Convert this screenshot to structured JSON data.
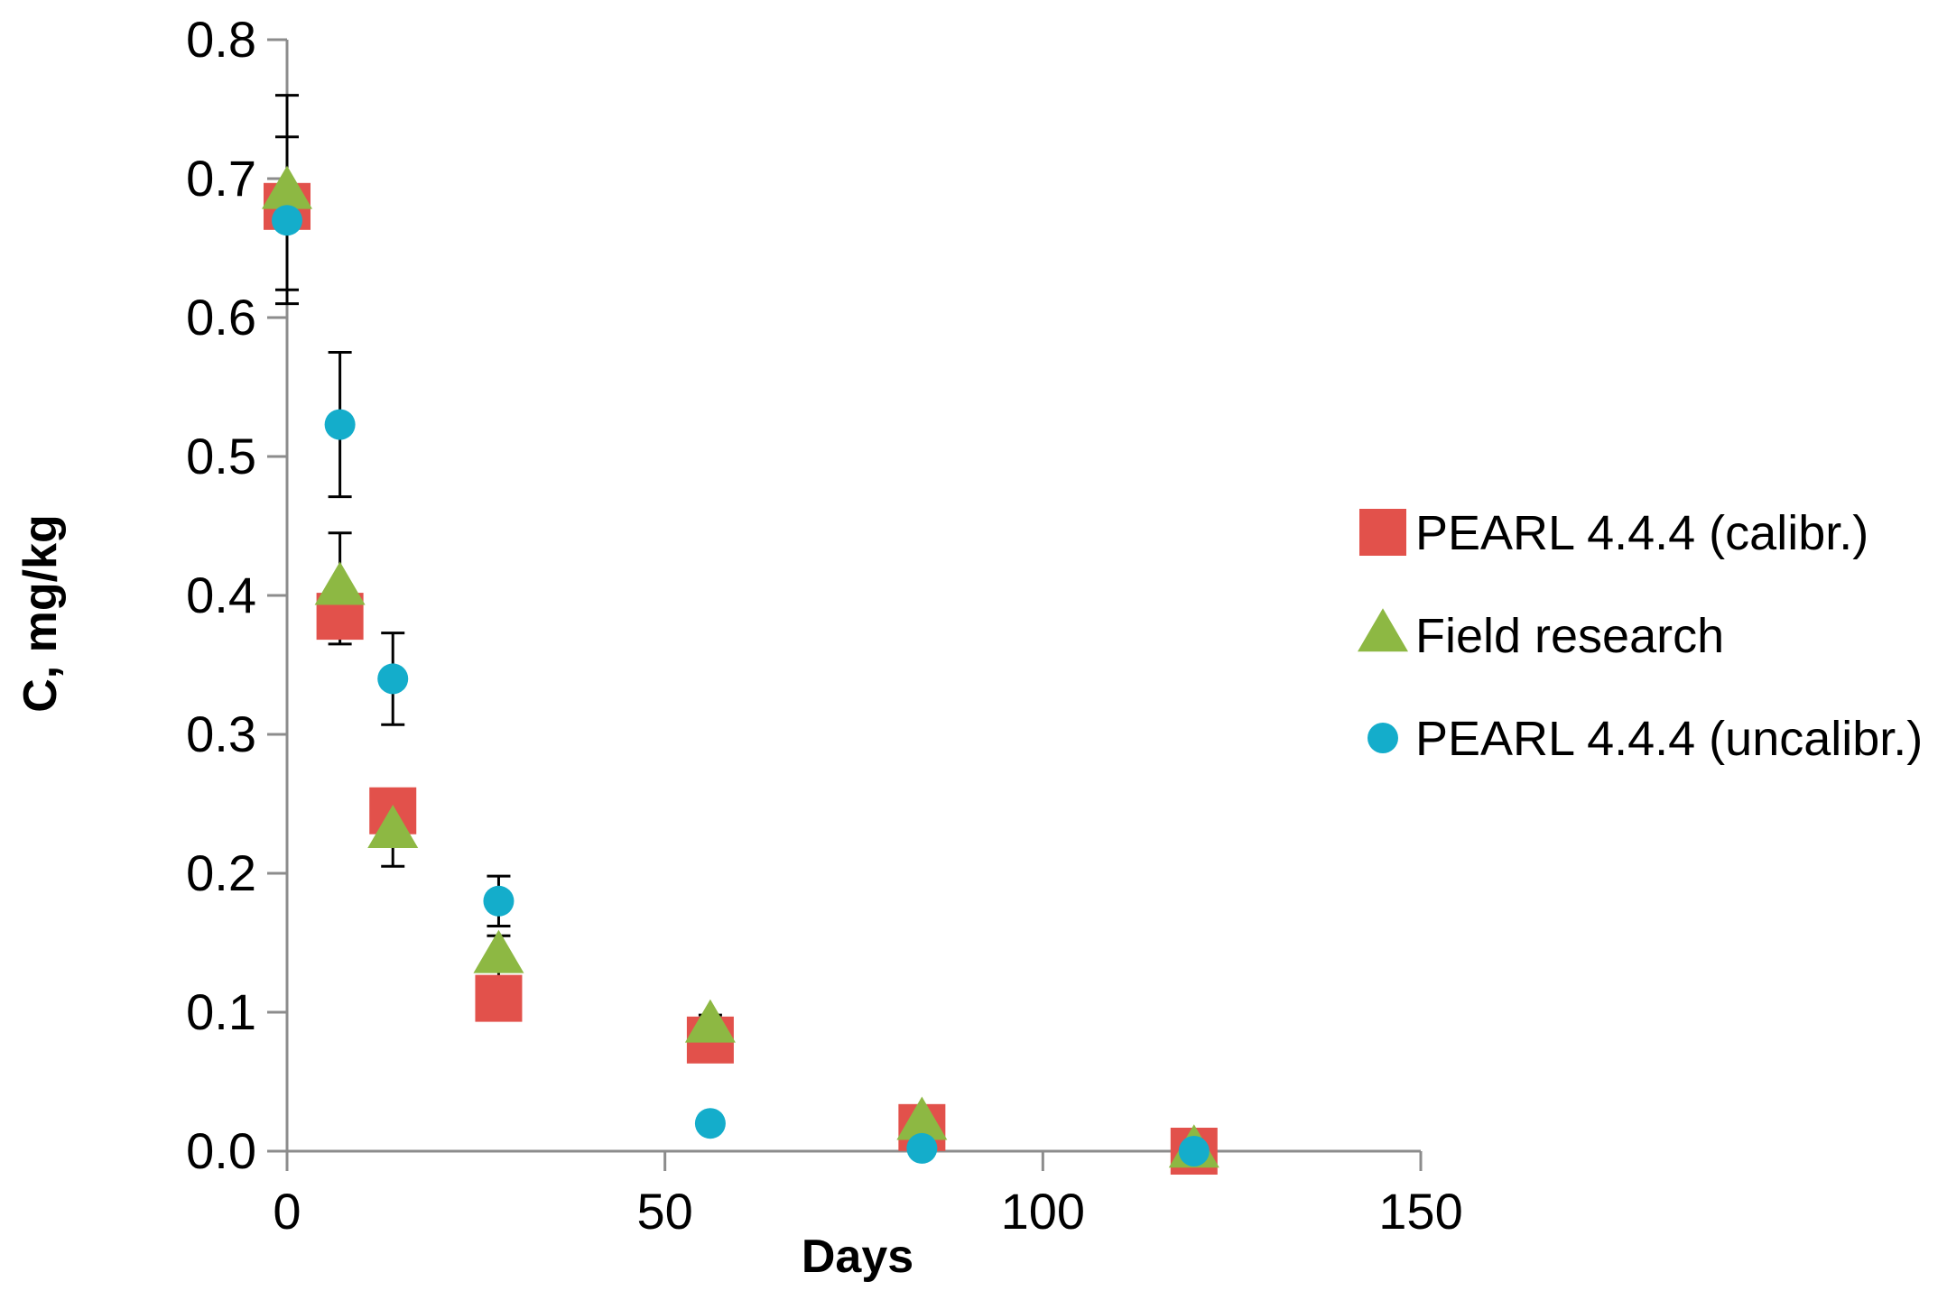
{
  "chart_data": {
    "type": "scatter",
    "title": "",
    "xlabel": "Days",
    "ylabel": "C, mg/kg",
    "xlim": [
      0,
      150
    ],
    "ylim": [
      0,
      0.8
    ],
    "xticks": [
      0,
      50,
      100,
      150
    ],
    "xtick_labels": [
      "0",
      "50",
      "100",
      "150"
    ],
    "yticks": [
      0,
      0.1,
      0.2,
      0.3,
      0.4,
      0.5,
      0.6,
      0.7,
      0.8
    ],
    "ytick_labels": [
      "0.0",
      "0.1",
      "0.2",
      "0.3",
      "0.4",
      "0.5",
      "0.6",
      "0.7",
      "0.8"
    ],
    "grid": false,
    "legend_position": "right",
    "series": [
      {
        "name": "PEARL 4.4.4 (calibr.)",
        "marker": "square",
        "color": "#E2514B",
        "x": [
          0,
          7,
          14,
          28,
          56,
          84,
          120
        ],
        "values": [
          0.68,
          0.385,
          0.245,
          0.11,
          0.08,
          0.017,
          0.0
        ]
      },
      {
        "name": "Field research",
        "marker": "triangle",
        "color": "#8DB843",
        "x": [
          0,
          7,
          14,
          28,
          56,
          84,
          120
        ],
        "values": [
          0.69,
          0.405,
          0.23,
          0.14,
          0.09,
          0.02,
          0.0
        ],
        "error": [
          0.07,
          0.04,
          0.025,
          0.015,
          0.008,
          0.0,
          0.0
        ]
      },
      {
        "name": "PEARL 4.4.4 (uncalibr.)",
        "marker": "circle",
        "color": "#14ADCB",
        "x": [
          0,
          7,
          14,
          28,
          56,
          84,
          120
        ],
        "values": [
          0.67,
          0.523,
          0.34,
          0.18,
          0.02,
          0.002,
          0.0
        ],
        "error": [
          0.06,
          0.052,
          0.033,
          0.018,
          0.0,
          0.0,
          0.0
        ]
      }
    ]
  }
}
